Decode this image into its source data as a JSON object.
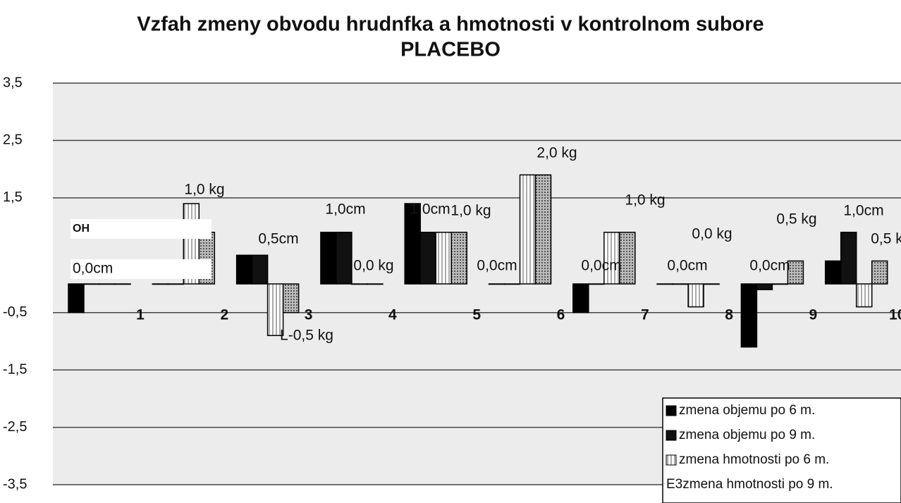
{
  "chart_data": {
    "type": "bar",
    "title": "Vzfah zmeny obvodu hrudnfka a hmotnosti v kontrolnom subore",
    "subtitle": "PLACEBO",
    "categories": [
      "1",
      "2",
      "3",
      "4",
      "5",
      "6",
      "7",
      "8",
      "9",
      "10"
    ],
    "series": [
      {
        "name": "zmena objemu po 6 m.",
        "color": "#000000",
        "values": [
          -0.5,
          0,
          0.5,
          0.9,
          1.4,
          0,
          -0.5,
          0,
          -1.1,
          0.4
        ]
      },
      {
        "name": "zmena objemu po 9 m.",
        "color": "#1a1a1a",
        "values": [
          0,
          0,
          0.5,
          0.9,
          0.9,
          0,
          0,
          0,
          -0.1,
          0.9
        ]
      },
      {
        "name": "zmena hmotnosti po 6 m.",
        "color": "#ffffff",
        "values": [
          0,
          1.4,
          -0.9,
          0,
          0.9,
          1.9,
          0.9,
          -0.4,
          0,
          -0.4
        ]
      },
      {
        "name": "E3zmena hmotnosti po 9 m.",
        "color": "#9a9a9a",
        "values": [
          0,
          0.9,
          -0.5,
          0,
          0.9,
          1.9,
          0.9,
          0,
          0.4,
          0.4
        ]
      }
    ],
    "ylim": [
      -3.5,
      3.5
    ],
    "yticks": [
      {
        "value": 3.5,
        "label": "3,5"
      },
      {
        "value": 2.5,
        "label": "2,5"
      },
      {
        "value": 1.5,
        "label": "1,5"
      },
      {
        "value": -0.5,
        "label": "-0,5"
      },
      {
        "value": -1.5,
        "label": "-1,5"
      },
      {
        "value": -2.5,
        "label": "-2,5"
      },
      {
        "value": -3.5,
        "label": "-3,5"
      }
    ],
    "grid": true,
    "legend": "bottom-right",
    "annotations": [
      "1,0 kg",
      "cm",
      "0,5cm",
      "1,0cm",
      "0,0 kg",
      "1,0cm",
      "1,0 kg",
      "2,0 kg",
      "0,0cm",
      "1,0 kg",
      "0,0cm",
      "0,0cm",
      "0,0 kg",
      "0,0cm",
      "0,5 kg",
      "1,0cm",
      "0,5 k",
      "L-0,5 kg"
    ],
    "overlay_labels": [
      "OH",
      "0,0cm"
    ]
  }
}
